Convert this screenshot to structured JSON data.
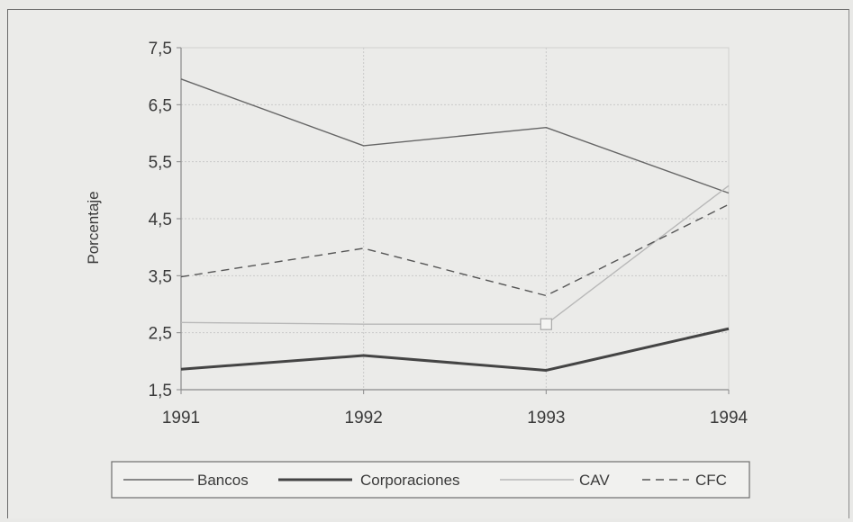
{
  "chart_data": {
    "type": "line",
    "title": "",
    "xlabel": "",
    "ylabel": "Porcentaje",
    "x": [
      "1991",
      "1992",
      "1993",
      "1994"
    ],
    "ylim": [
      1.5,
      7.5
    ],
    "yticks": [
      "1,5",
      "2,5",
      "3,5",
      "4,5",
      "5,5",
      "6,5",
      "7,5"
    ],
    "grid": true,
    "legend_position": "bottom",
    "series": [
      {
        "name": "Bancos",
        "values": [
          6.95,
          5.78,
          6.1,
          4.95
        ],
        "color": "#666666",
        "style": "solid",
        "weight": "thin"
      },
      {
        "name": "Corporaciones",
        "values": [
          1.86,
          2.1,
          1.84,
          2.57
        ],
        "color": "#444444",
        "style": "solid",
        "weight": "thick"
      },
      {
        "name": "CAV",
        "values": [
          2.68,
          2.65,
          2.65,
          5.08
        ],
        "color": "#b8b8b8",
        "style": "solid",
        "weight": "thin",
        "marker_at": "1993"
      },
      {
        "name": "CFC",
        "values": [
          3.48,
          3.98,
          3.15,
          4.75
        ],
        "color": "#555555",
        "style": "dashed",
        "weight": "thin"
      }
    ]
  }
}
